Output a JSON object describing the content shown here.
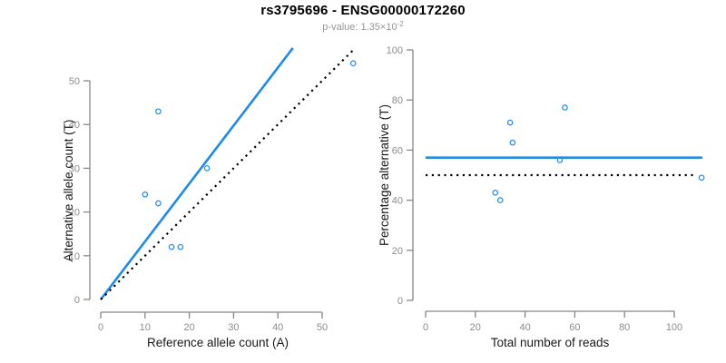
{
  "header": {
    "title": "rs3795696 - ENSG00000172260",
    "subtitle_prefix": "p-value: 1.35×10",
    "subtitle_exponent": "-2"
  },
  "palette": {
    "point_blue": "#1f8ceb",
    "fit_line_blue": "#1f8ceb",
    "reference_line_black": "#000000",
    "axis_gray": "#878787",
    "tick_label_gray": "#8c8c8c",
    "axis_title_dark": "#1a1a1a"
  },
  "chart_data": [
    {
      "type": "scatter",
      "xlabel": "Reference allele count (A)",
      "ylabel": "Alternative allele count (T)",
      "xticks": [
        0,
        10,
        20,
        30,
        40,
        50
      ],
      "yticks": [
        0,
        10,
        20,
        30,
        40,
        50
      ],
      "xlim": [
        0,
        57.5
      ],
      "ylim": [
        0,
        57.5
      ],
      "grid": false,
      "legend": "none",
      "points": [
        [
          10,
          24
        ],
        [
          13,
          43
        ],
        [
          13,
          22
        ],
        [
          16,
          12
        ],
        [
          18,
          12
        ],
        [
          24,
          30
        ],
        [
          57,
          54
        ]
      ],
      "lines": [
        {
          "name": "fit-line",
          "style": "solid",
          "color": "#1f8ceb",
          "x1": 0,
          "y1": 0,
          "x2": 43.4,
          "y2": 57.5
        },
        {
          "name": "identity-line",
          "style": "dotted",
          "color": "#000000",
          "x1": 0,
          "y1": 0,
          "x2": 57.3,
          "y2": 57.3
        }
      ]
    },
    {
      "type": "scatter",
      "xlabel": "Total number of reads",
      "ylabel": "Percentage alternative (T)",
      "xticks": [
        0,
        20,
        40,
        60,
        80,
        100
      ],
      "yticks": [
        0,
        20,
        40,
        60,
        80,
        100
      ],
      "xlim": [
        0,
        111.5
      ],
      "ylim": [
        0,
        100
      ],
      "grid": false,
      "legend": "none",
      "points": [
        [
          28,
          43
        ],
        [
          30,
          40
        ],
        [
          34,
          71
        ],
        [
          35,
          63
        ],
        [
          54,
          56
        ],
        [
          56,
          77
        ],
        [
          111,
          49
        ]
      ],
      "lines": [
        {
          "name": "mean-percentage-line",
          "style": "solid",
          "color": "#1f8ceb",
          "x1": 0,
          "y1": 57,
          "x2": 111.3,
          "y2": 57
        },
        {
          "name": "expected-50pct-line",
          "style": "dotted",
          "color": "#000000",
          "x1": 0,
          "y1": 50,
          "x2": 109,
          "y2": 50
        }
      ]
    }
  ]
}
